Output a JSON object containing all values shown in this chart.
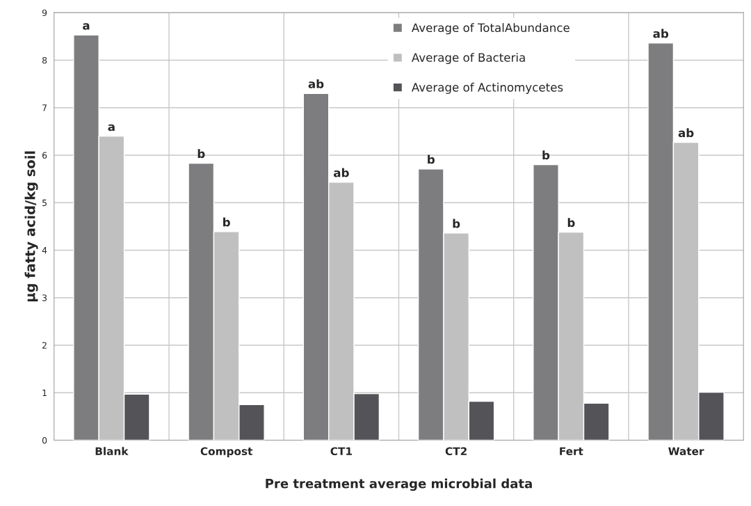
{
  "chart_data": {
    "type": "bar",
    "xlabel": "Pre treatment average microbial data",
    "ylabel": "µg fatty acid/kg soil",
    "categories": [
      "Blank",
      "Compost",
      "CT1",
      "CT2",
      "Fert",
      "Water"
    ],
    "series": [
      {
        "name": "Average of TotalAbundance",
        "color": "#7d7d80",
        "values": [
          8.53,
          5.83,
          7.3,
          5.71,
          5.8,
          8.36
        ],
        "value_labels": [
          "a",
          "b",
          "ab",
          "b",
          "b",
          "ab"
        ]
      },
      {
        "name": "Average of Bacteria",
        "color": "#c0c0c0",
        "values": [
          6.4,
          4.39,
          5.43,
          4.36,
          4.38,
          6.27
        ],
        "value_labels": [
          "a",
          "b",
          "ab",
          "b",
          "b",
          "ab"
        ]
      },
      {
        "name": "Average of Actinomycetes",
        "color": "#545358",
        "values": [
          0.97,
          0.75,
          0.98,
          0.82,
          0.78,
          1.01
        ]
      }
    ],
    "ylim": [
      0,
      9
    ],
    "yticks": [
      0,
      1,
      2,
      3,
      4,
      5,
      6,
      7,
      8,
      9
    ],
    "grid": true,
    "legend": "top"
  }
}
